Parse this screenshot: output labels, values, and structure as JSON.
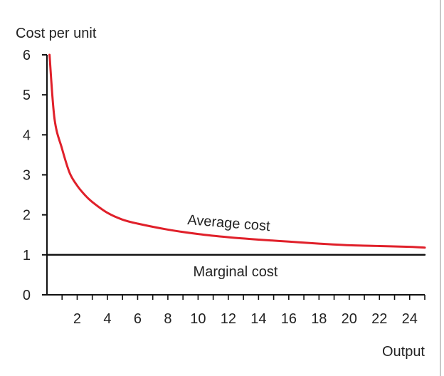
{
  "chart_data": {
    "type": "line",
    "ylabel": "Cost per unit",
    "xlabel": "Output",
    "xlim": [
      0,
      25
    ],
    "ylim": [
      0,
      6
    ],
    "x_ticks": [
      2,
      4,
      6,
      8,
      10,
      12,
      14,
      16,
      18,
      20,
      22,
      24
    ],
    "y_ticks": [
      0,
      1,
      2,
      3,
      4,
      5,
      6
    ],
    "grid": false,
    "legend": "none",
    "series": [
      {
        "name": "Average cost",
        "color": "#e0202a",
        "x": [
          0.17,
          0.5,
          1,
          1.5,
          2,
          2.5,
          3,
          4,
          5,
          6,
          8,
          10,
          12,
          14,
          16,
          18,
          20,
          22,
          24,
          25
        ],
        "y": [
          6.0,
          4.4,
          3.65,
          3.05,
          2.73,
          2.5,
          2.32,
          2.05,
          1.88,
          1.78,
          1.63,
          1.52,
          1.44,
          1.38,
          1.33,
          1.28,
          1.24,
          1.22,
          1.2,
          1.18
        ]
      },
      {
        "name": "Marginal cost",
        "color": "#111111",
        "x": [
          0,
          25
        ],
        "y": [
          1,
          1
        ]
      }
    ]
  }
}
